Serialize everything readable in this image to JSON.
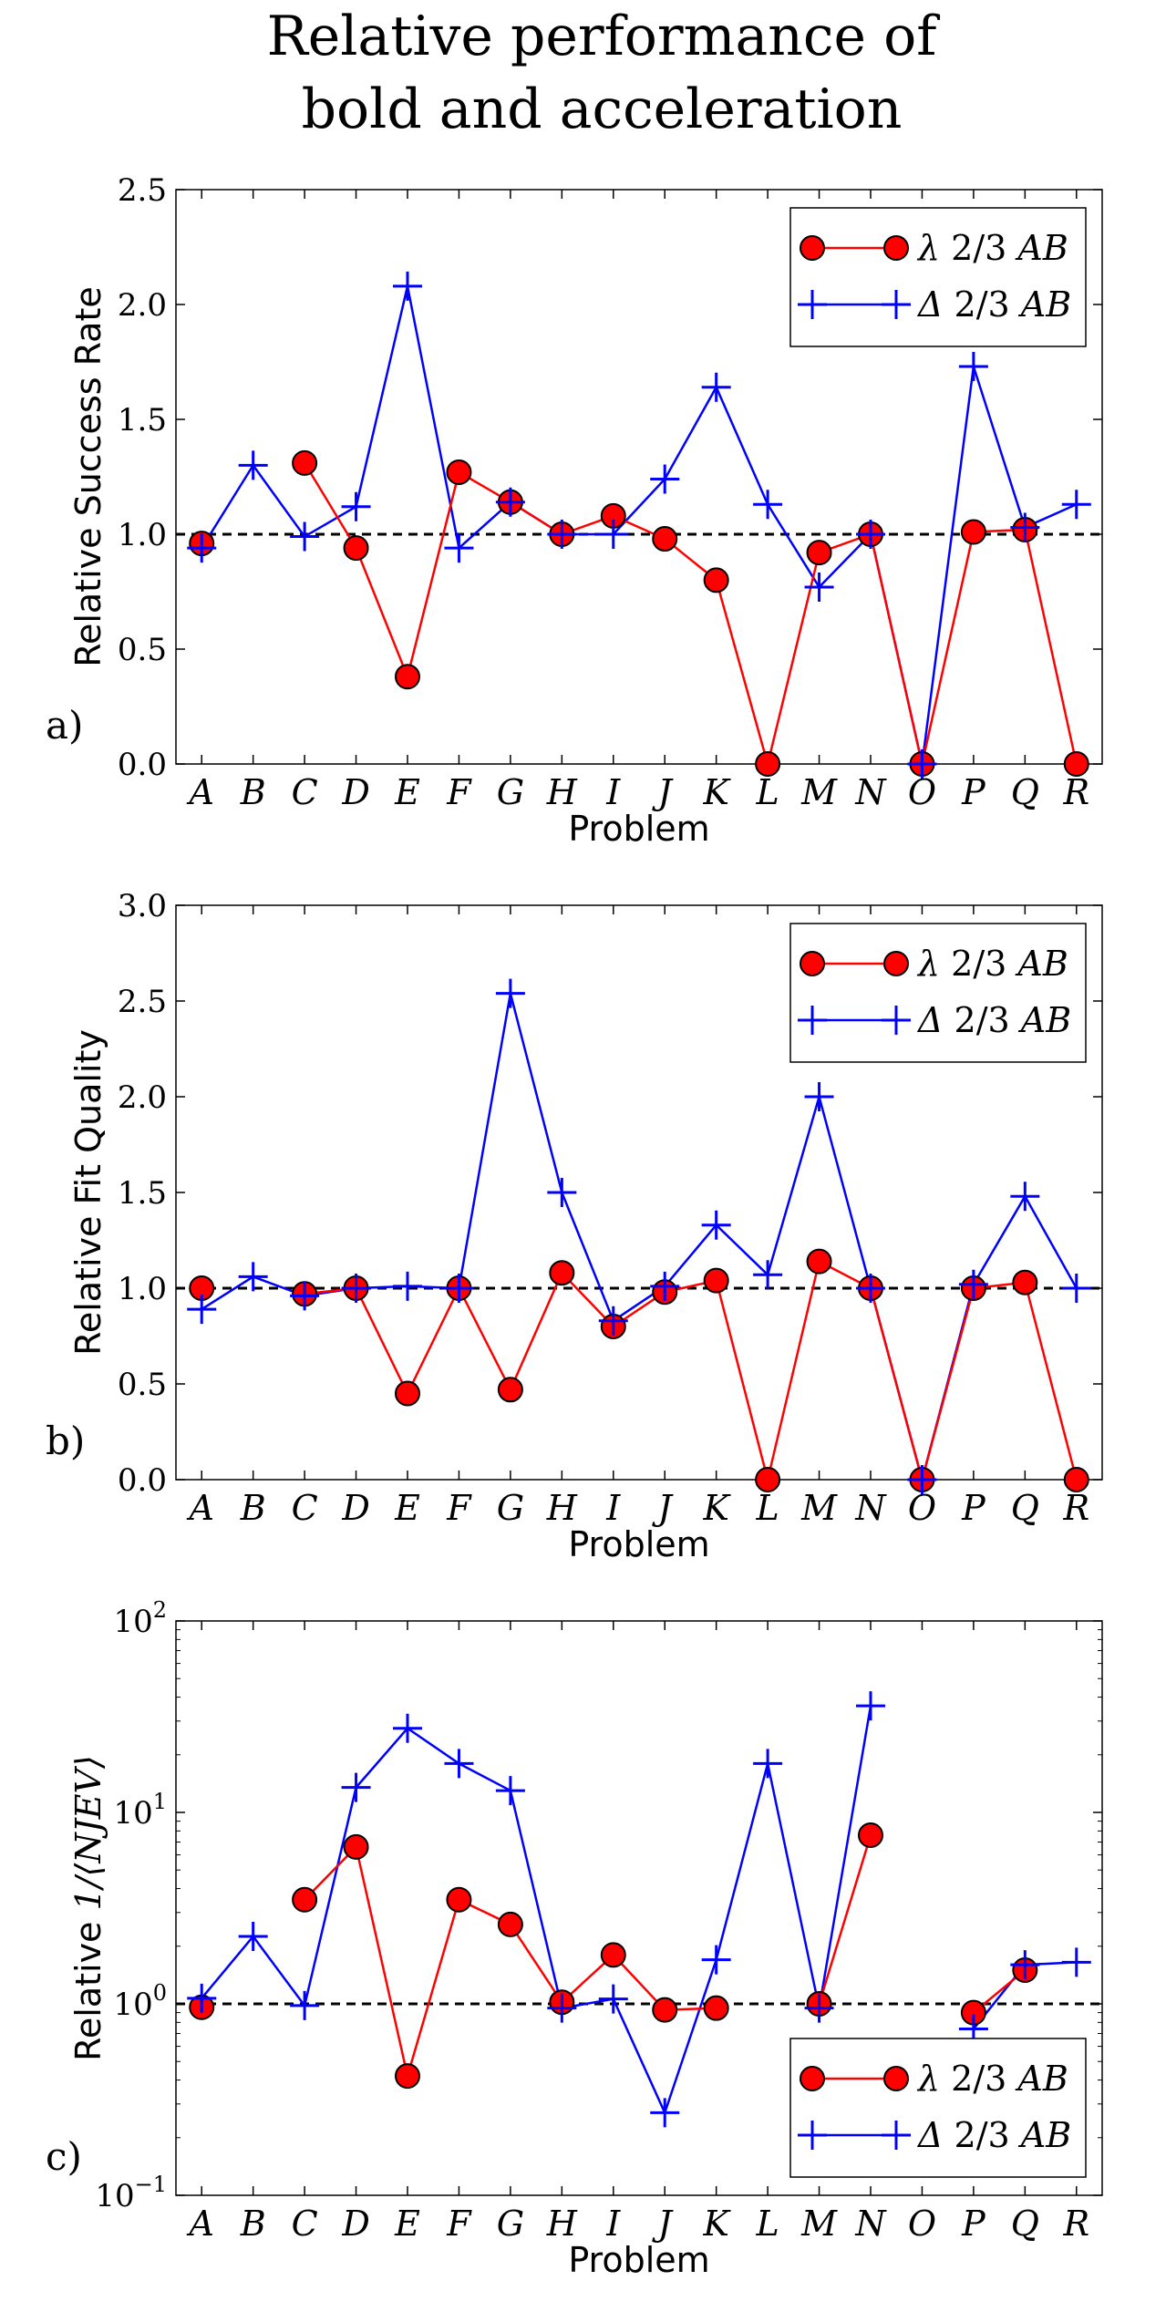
{
  "figure_title": [
    "Relative performance of",
    "bold and acceleration"
  ],
  "colors": {
    "lambda": "#ff0000",
    "delta": "#0000ff",
    "marker_edge": "#000000",
    "reference": "#000000"
  },
  "chart_data": [
    {
      "type": "line",
      "panel_label": "a)",
      "ylabel": "Relative Success Rate",
      "xlabel": "Problem",
      "scale": "linear",
      "ylim": [
        0,
        2.5
      ],
      "yticks": [
        0,
        0.5,
        1.0,
        1.5,
        2.0,
        2.5
      ],
      "ytick_labels": [
        "0.0",
        "0.5",
        "1.0",
        "1.5",
        "2.0",
        "2.5"
      ],
      "reference_line": 1.0,
      "legend_position": "top-right",
      "categories": [
        "A",
        "B",
        "C",
        "D",
        "E",
        "F",
        "G",
        "H",
        "I",
        "J",
        "K",
        "L",
        "M",
        "N",
        "O",
        "P",
        "Q",
        "R"
      ],
      "series": [
        {
          "name": "λ 2/3 AB",
          "key": "lambda",
          "marker": "circle",
          "values": [
            0.96,
            null,
            1.31,
            0.94,
            0.38,
            1.27,
            1.14,
            1.0,
            1.08,
            0.98,
            0.8,
            0.0,
            0.92,
            1.0,
            0.0,
            1.01,
            1.02,
            0.0
          ]
        },
        {
          "name": "Δ 2/3 AB",
          "key": "delta",
          "marker": "plus",
          "values": [
            0.94,
            1.3,
            0.99,
            1.12,
            2.08,
            0.94,
            1.14,
            1.0,
            1.0,
            1.24,
            1.64,
            1.13,
            0.77,
            1.0,
            0.0,
            1.73,
            1.03,
            1.13
          ]
        }
      ]
    },
    {
      "type": "line",
      "panel_label": "b)",
      "ylabel": "Relative Fit Quality",
      "xlabel": "Problem",
      "scale": "linear",
      "ylim": [
        0,
        3.0
      ],
      "yticks": [
        0,
        0.5,
        1.0,
        1.5,
        2.0,
        2.5,
        3.0
      ],
      "ytick_labels": [
        "0.0",
        "0.5",
        "1.0",
        "1.5",
        "2.0",
        "2.5",
        "3.0"
      ],
      "reference_line": 1.0,
      "legend_position": "top-right",
      "categories": [
        "A",
        "B",
        "C",
        "D",
        "E",
        "F",
        "G",
        "H",
        "I",
        "J",
        "K",
        "L",
        "M",
        "N",
        "O",
        "P",
        "Q",
        "R"
      ],
      "series": [
        {
          "name": "λ 2/3 AB",
          "key": "lambda",
          "marker": "circle",
          "values": [
            1.0,
            null,
            0.97,
            1.0,
            0.45,
            1.0,
            0.47,
            1.08,
            0.8,
            0.98,
            1.04,
            0.0,
            1.14,
            1.0,
            0.0,
            1.0,
            1.03,
            0.0
          ]
        },
        {
          "name": "Δ 2/3 AB",
          "key": "delta",
          "marker": "plus",
          "values": [
            0.89,
            1.06,
            0.96,
            1.0,
            1.01,
            1.0,
            2.54,
            1.5,
            0.83,
            1.01,
            1.33,
            1.07,
            2.0,
            1.0,
            0.0,
            1.02,
            1.48,
            1.0
          ]
        }
      ]
    },
    {
      "type": "line",
      "panel_label": "c)",
      "ylabel": "Relative 1/⟨NJEV⟩",
      "ylabel_prefix": "Relative ",
      "ylabel_math": "1/⟨NJEV⟩",
      "xlabel": "Problem",
      "scale": "log",
      "ylim": [
        0.1,
        100
      ],
      "yticks": [
        0.1,
        1,
        10,
        100
      ],
      "ytick_labels": [
        [
          "10",
          "−1"
        ],
        [
          "10",
          "0"
        ],
        [
          "10",
          "1"
        ],
        [
          "10",
          "2"
        ]
      ],
      "reference_line": 1.0,
      "legend_position": "bottom-right",
      "categories": [
        "A",
        "B",
        "C",
        "D",
        "E",
        "F",
        "G",
        "H",
        "I",
        "J",
        "K",
        "L",
        "M",
        "N",
        "O",
        "P",
        "Q",
        "R"
      ],
      "series": [
        {
          "name": "λ 2/3 AB",
          "key": "lambda",
          "marker": "circle",
          "values": [
            0.96,
            null,
            3.5,
            6.6,
            0.42,
            3.5,
            2.6,
            1.02,
            1.8,
            0.93,
            0.95,
            null,
            1.0,
            7.6,
            null,
            0.9,
            1.5,
            null
          ]
        },
        {
          "name": "Δ 2/3 AB",
          "key": "delta",
          "marker": "plus",
          "values": [
            1.07,
            2.25,
            0.98,
            13.5,
            27.5,
            18.0,
            13.0,
            0.95,
            1.06,
            0.27,
            1.7,
            18.0,
            0.95,
            36.0,
            null,
            0.74,
            1.6,
            1.65
          ]
        }
      ]
    }
  ]
}
